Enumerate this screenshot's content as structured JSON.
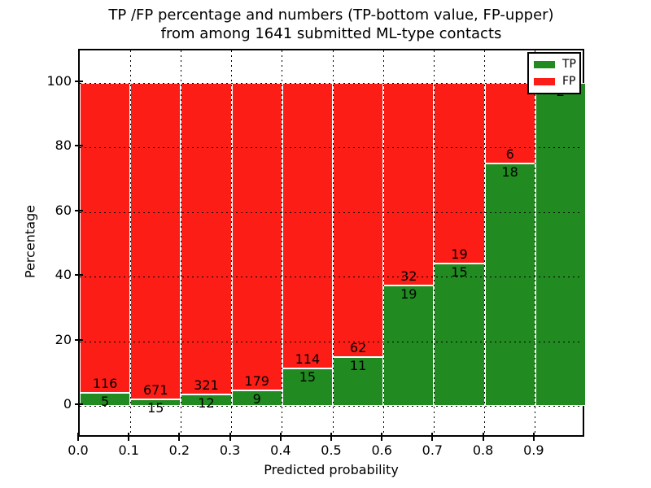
{
  "figure": {
    "title_line1": "TP /FP percentage and numbers (TP-bottom value, FP-upper)",
    "title_line2": "from among 1641 submitted ML-type contacts"
  },
  "axes": {
    "xlabel": "Predicted probability",
    "ylabel": "Percentage",
    "x_tick_labels": [
      "0.0",
      "0.1",
      "0.2",
      "0.3",
      "0.4",
      "0.5",
      "0.6",
      "0.7",
      "0.8",
      "0.9"
    ],
    "y_tick_labels": [
      "0",
      "20",
      "40",
      "60",
      "80",
      "100"
    ],
    "y_tick_values": [
      0,
      20,
      40,
      60,
      80,
      100
    ]
  },
  "legend": {
    "items": [
      {
        "label": "TP",
        "color": "#218a21"
      },
      {
        "label": "FP",
        "color": "#fc1d16"
      }
    ]
  },
  "chart_data": {
    "type": "bar",
    "stacked": true,
    "normalized": "each bar totals 100%",
    "title": "TP /FP percentage and numbers (TP-bottom value, FP-upper) from among 1641 submitted ML-type contacts",
    "xlabel": "Predicted probability",
    "ylabel": "Percentage",
    "categories": [
      "0.0-0.1",
      "0.1-0.2",
      "0.2-0.3",
      "0.3-0.4",
      "0.4-0.5",
      "0.5-0.6",
      "0.6-0.7",
      "0.7-0.8",
      "0.8-0.9",
      "0.9-1.0"
    ],
    "series": [
      {
        "name": "TP",
        "color": "#218a21",
        "counts": [
          5,
          15,
          12,
          9,
          15,
          11,
          19,
          15,
          18,
          2
        ],
        "percent": [
          4.13,
          2.19,
          3.6,
          4.79,
          11.63,
          15.07,
          37.25,
          44.12,
          75.0,
          100.0
        ]
      },
      {
        "name": "FP",
        "color": "#fc1d16",
        "counts": [
          116,
          671,
          321,
          179,
          114,
          62,
          32,
          19,
          6,
          0
        ],
        "percent": [
          95.87,
          97.81,
          96.4,
          95.21,
          88.37,
          84.93,
          62.75,
          55.88,
          25.0,
          0.0
        ]
      }
    ],
    "total_contacts": 1641,
    "xlim": [
      0.0,
      1.0
    ],
    "ylim": [
      -10,
      110
    ],
    "grid": "dotted both axes",
    "legend_position": "upper right",
    "bar_label_rule": "TP count printed below TP/FP boundary, FP count printed above boundary"
  }
}
